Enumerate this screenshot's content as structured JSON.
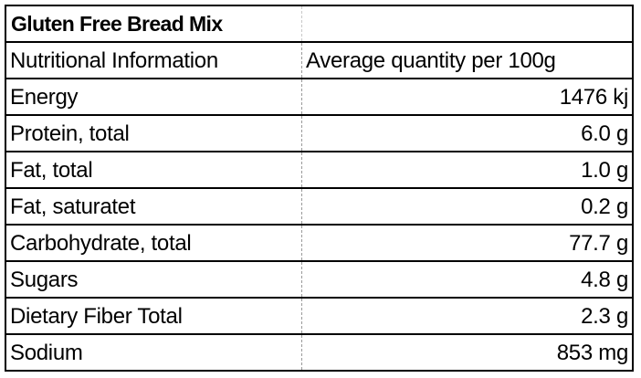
{
  "table": {
    "title": "Gluten Free Bread Mix",
    "header": {
      "label": "Nutritional Information",
      "value": "Average quantity per 100g"
    },
    "rows": [
      {
        "label": "Energy",
        "value": "1476 kj"
      },
      {
        "label": "Protein, total",
        "value": "6.0 g"
      },
      {
        "label": "Fat, total",
        "value": "1.0 g"
      },
      {
        "label": "Fat, saturatet",
        "value": "0.2 g"
      },
      {
        "label": "Carbohydrate, total",
        "value": "77.7 g"
      },
      {
        "label": "Sugars",
        "value": "4.8 g"
      },
      {
        "label": "Dietary Fiber Total",
        "value": "2.3 g"
      },
      {
        "label": "Sodium",
        "value": "853 mg"
      }
    ]
  }
}
